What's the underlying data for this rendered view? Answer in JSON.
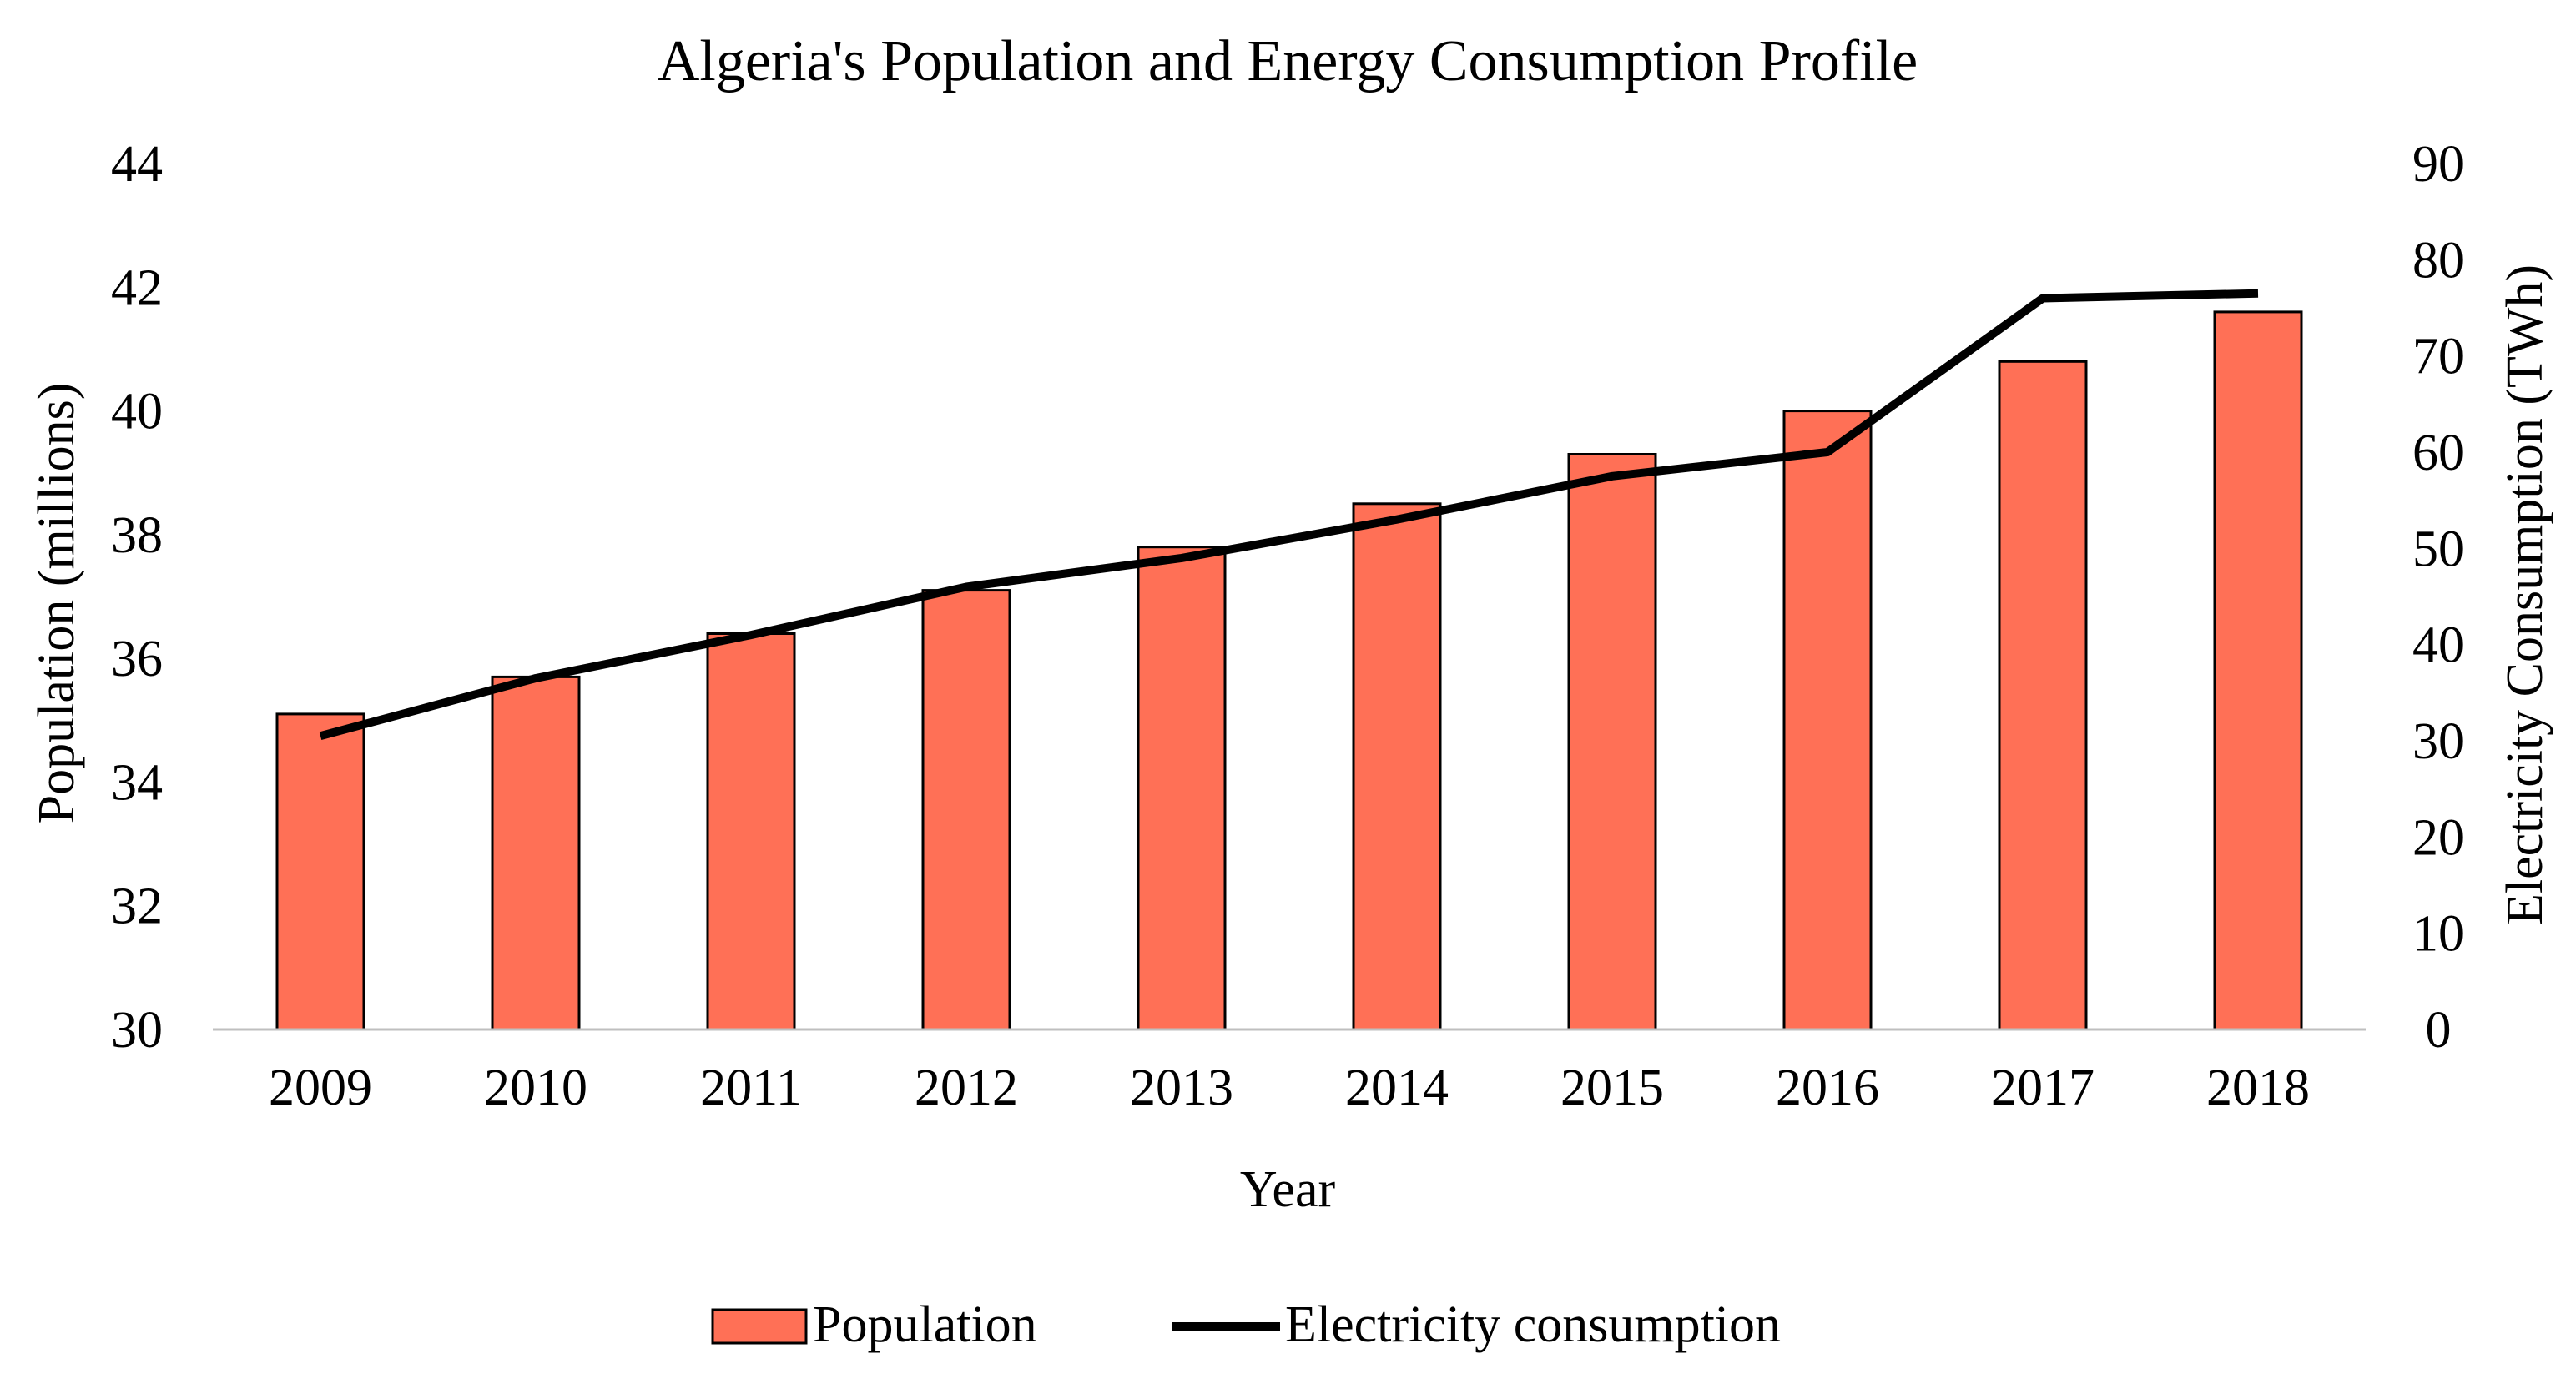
{
  "chart_data": {
    "type": "bar",
    "title": "Algeria's Population and Energy Consumption Profile",
    "xlabel": "Year",
    "ylabel": "Population (millions)",
    "y2label": "Electricity Consumption (TWh)",
    "categories": [
      "2009",
      "2010",
      "2011",
      "2012",
      "2013",
      "2014",
      "2015",
      "2016",
      "2017",
      "2018"
    ],
    "ylim": [
      30,
      44
    ],
    "yticks": [
      30,
      32,
      34,
      36,
      38,
      40,
      42,
      44
    ],
    "y2lim": [
      0,
      90
    ],
    "y2ticks": [
      0,
      10,
      20,
      30,
      40,
      50,
      60,
      70,
      80,
      90
    ],
    "grid": false,
    "legend_position": "bottom",
    "series": [
      {
        "name": "Population",
        "type": "bar",
        "axis": "left",
        "color": "#FF7056",
        "values": [
          35.1,
          35.7,
          36.4,
          37.1,
          37.8,
          38.5,
          39.3,
          40.0,
          40.8,
          41.6
        ]
      },
      {
        "name": "Electricity consumption",
        "type": "line",
        "axis": "right",
        "color": "#000000",
        "values": [
          30.5,
          36.5,
          41,
          46,
          49,
          53,
          57.5,
          60,
          76,
          76.5
        ]
      }
    ]
  }
}
